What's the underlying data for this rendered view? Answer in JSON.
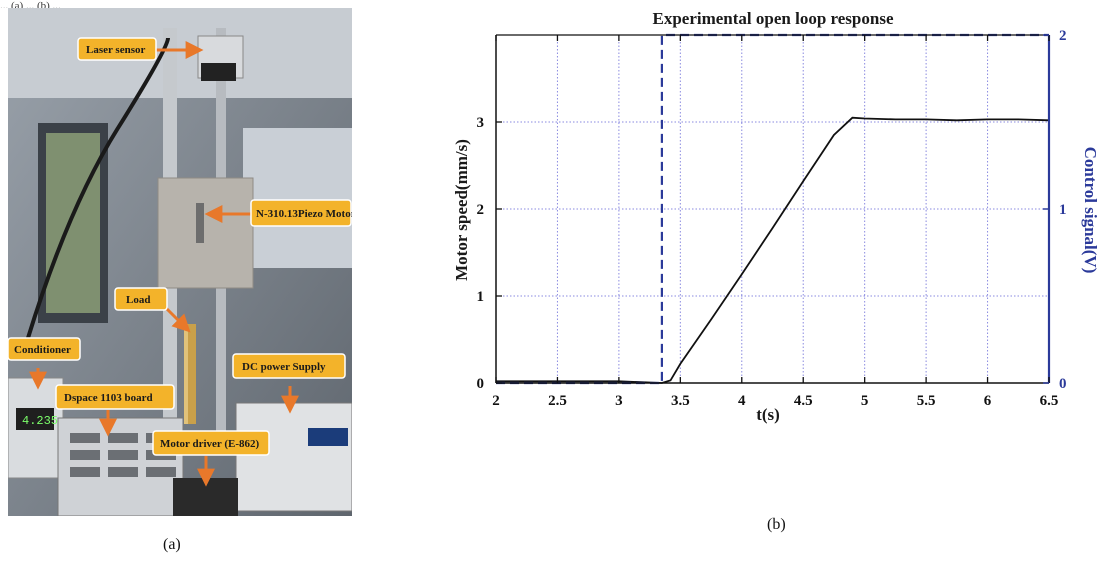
{
  "header_fragment": "... (a) ... (b) ...",
  "captions": {
    "a": "(a)",
    "b": "(b)"
  },
  "photo": {
    "labels": {
      "laser_sensor": "Laser sensor",
      "piezo_motor": "N-310.13Piezo Motor",
      "load": "Load",
      "conditioner": "Conditioner",
      "dc_power": "DC power Supply",
      "dspace": "Dspace 1103 board",
      "motor_driver": "Motor driver (E-862)"
    },
    "colors": {
      "label_bg": "#f3b32a",
      "arrow": "#e8782a"
    }
  },
  "chart_data": {
    "type": "line",
    "title": "Experimental open loop response",
    "xlabel": "t(s)",
    "ylabel": "Motor speed(mm/s)",
    "y2label": "Control signal(V)",
    "xlim": [
      2,
      6.5
    ],
    "ylim": [
      0,
      4
    ],
    "y2lim": [
      0,
      2
    ],
    "xticks": [
      "2",
      "2.5",
      "3",
      "3.5",
      "4",
      "4.5",
      "5",
      "5.5",
      "6",
      "6.5"
    ],
    "yticks": [
      "0",
      "1",
      "2",
      "3"
    ],
    "y2ticks": [
      "0",
      "1",
      "2"
    ],
    "grid": true,
    "series": [
      {
        "axis": "left",
        "color": "#111111",
        "style": "solid",
        "x": [
          2.0,
          2.5,
          3.0,
          3.35,
          3.42,
          3.5,
          3.75,
          4.0,
          4.25,
          4.5,
          4.75,
          4.9,
          5.0,
          5.25,
          5.5,
          5.75,
          6.0,
          6.25,
          6.5
        ],
        "y": [
          0.02,
          0.02,
          0.02,
          0.0,
          0.03,
          0.22,
          0.73,
          1.25,
          1.78,
          2.32,
          2.85,
          3.05,
          3.04,
          3.03,
          3.03,
          3.02,
          3.03,
          3.03,
          3.02
        ]
      },
      {
        "axis": "right",
        "color": "#2b3a9a",
        "style": "dashed",
        "x": [
          2.0,
          3.35,
          3.35,
          6.5
        ],
        "y": [
          0,
          0,
          2,
          2
        ]
      }
    ],
    "colors": {
      "right_axis": "#2b3a9a",
      "grid": "#8a8ae0"
    }
  }
}
